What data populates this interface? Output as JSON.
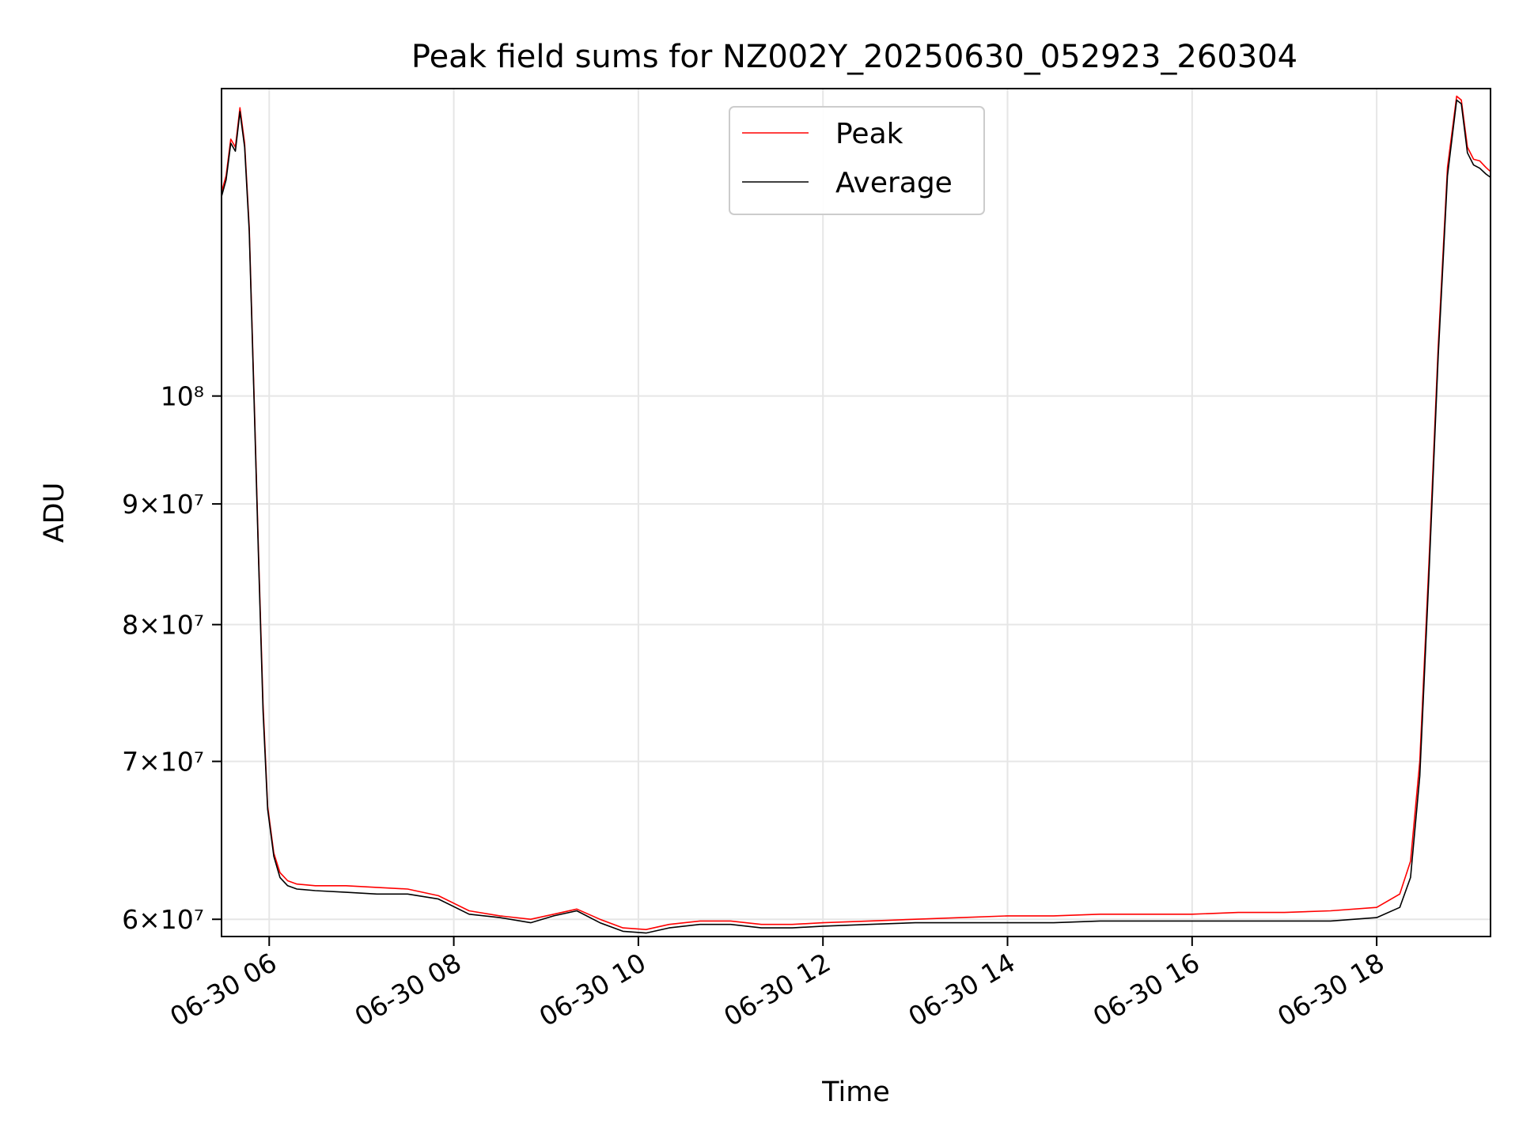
{
  "chart_data": {
    "type": "line",
    "title": "Peak field sums for NZ002Y_20250630_052923_260304",
    "xlabel": "Time",
    "ylabel": "ADU",
    "y_scale": "log",
    "grid": true,
    "legend_position": "top-center",
    "xlim": [
      "06-30 05:29",
      "06-30 19:14"
    ],
    "ylim": [
      59000000,
      135000000
    ],
    "x_ticks": [
      {
        "time": "06-30 06:00",
        "label": "06-30 06"
      },
      {
        "time": "06-30 08:00",
        "label": "06-30 08"
      },
      {
        "time": "06-30 10:00",
        "label": "06-30 10"
      },
      {
        "time": "06-30 12:00",
        "label": "06-30 12"
      },
      {
        "time": "06-30 14:00",
        "label": "06-30 14"
      },
      {
        "time": "06-30 16:00",
        "label": "06-30 16"
      },
      {
        "time": "06-30 18:00",
        "label": "06-30 18"
      }
    ],
    "y_ticks": [
      {
        "value": 60000000,
        "label": "6×10⁷"
      },
      {
        "value": 70000000,
        "label": "7×10⁷"
      },
      {
        "value": 80000000,
        "label": "8×10⁷"
      },
      {
        "value": 90000000,
        "label": "9×10⁷"
      },
      {
        "value": 100000000,
        "label": "10⁸"
      }
    ],
    "series": [
      {
        "name": "Peak",
        "color": "#ff0000",
        "x": [
          "06-30 05:29",
          "06-30 05:32",
          "06-30 05:35",
          "06-30 05:38",
          "06-30 05:41",
          "06-30 05:44",
          "06-30 05:47",
          "06-30 05:50",
          "06-30 05:53",
          "06-30 05:56",
          "06-30 05:59",
          "06-30 06:03",
          "06-30 06:07",
          "06-30 06:12",
          "06-30 06:18",
          "06-30 06:30",
          "06-30 06:50",
          "06-30 07:10",
          "06-30 07:30",
          "06-30 07:50",
          "06-30 08:10",
          "06-30 08:30",
          "06-30 08:50",
          "06-30 09:05",
          "06-30 09:20",
          "06-30 09:35",
          "06-30 09:50",
          "06-30 10:05",
          "06-30 10:20",
          "06-30 10:40",
          "06-30 11:00",
          "06-30 11:20",
          "06-30 11:40",
          "06-30 12:00",
          "06-30 12:30",
          "06-30 13:00",
          "06-30 13:30",
          "06-30 14:00",
          "06-30 14:30",
          "06-30 15:00",
          "06-30 15:30",
          "06-30 16:00",
          "06-30 16:30",
          "06-30 17:00",
          "06-30 17:30",
          "06-30 18:00",
          "06-30 18:15",
          "06-30 18:22",
          "06-30 18:28",
          "06-30 18:34",
          "06-30 18:40",
          "06-30 18:46",
          "06-30 18:52",
          "06-30 18:55",
          "06-30 18:59",
          "06-30 19:03",
          "06-30 19:07",
          "06-30 19:11",
          "06-30 19:14"
        ],
        "values": [
          122000000,
          124000000,
          128500000,
          127500000,
          132500000,
          128000000,
          118000000,
          101000000,
          86000000,
          74000000,
          67000000,
          64000000,
          62800000,
          62300000,
          62100000,
          62000000,
          62000000,
          61900000,
          61800000,
          61400000,
          60500000,
          60200000,
          60000000,
          60300000,
          60600000,
          60000000,
          59500000,
          59400000,
          59700000,
          59900000,
          59900000,
          59700000,
          59700000,
          59800000,
          59900000,
          60000000,
          60100000,
          60200000,
          60200000,
          60300000,
          60300000,
          60300000,
          60400000,
          60400000,
          60500000,
          60700000,
          61500000,
          63500000,
          70000000,
          85000000,
          105000000,
          125000000,
          134000000,
          133500000,
          127500000,
          126000000,
          125800000,
          125000000,
          124500000
        ]
      },
      {
        "name": "Average",
        "color": "#000000",
        "x": [
          "06-30 05:29",
          "06-30 05:32",
          "06-30 05:35",
          "06-30 05:38",
          "06-30 05:41",
          "06-30 05:44",
          "06-30 05:47",
          "06-30 05:50",
          "06-30 05:53",
          "06-30 05:56",
          "06-30 05:59",
          "06-30 06:03",
          "06-30 06:07",
          "06-30 06:12",
          "06-30 06:18",
          "06-30 06:30",
          "06-30 06:50",
          "06-30 07:10",
          "06-30 07:30",
          "06-30 07:50",
          "06-30 08:10",
          "06-30 08:30",
          "06-30 08:50",
          "06-30 09:05",
          "06-30 09:20",
          "06-30 09:35",
          "06-30 09:50",
          "06-30 10:05",
          "06-30 10:20",
          "06-30 10:40",
          "06-30 11:00",
          "06-30 11:20",
          "06-30 11:40",
          "06-30 12:00",
          "06-30 12:30",
          "06-30 13:00",
          "06-30 13:30",
          "06-30 14:00",
          "06-30 14:30",
          "06-30 15:00",
          "06-30 15:30",
          "06-30 16:00",
          "06-30 16:30",
          "06-30 17:00",
          "06-30 17:30",
          "06-30 18:00",
          "06-30 18:15",
          "06-30 18:22",
          "06-30 18:28",
          "06-30 18:34",
          "06-30 18:40",
          "06-30 18:46",
          "06-30 18:52",
          "06-30 18:55",
          "06-30 18:59",
          "06-30 19:03",
          "06-30 19:07",
          "06-30 19:11",
          "06-30 19:14"
        ],
        "values": [
          121500000,
          123500000,
          128000000,
          127000000,
          132000000,
          127500000,
          117500000,
          100500000,
          85500000,
          73500000,
          66800000,
          63800000,
          62500000,
          62000000,
          61800000,
          61700000,
          61600000,
          61500000,
          61500000,
          61200000,
          60300000,
          60100000,
          59800000,
          60200000,
          60500000,
          59800000,
          59300000,
          59200000,
          59500000,
          59700000,
          59700000,
          59500000,
          59500000,
          59600000,
          59700000,
          59800000,
          59800000,
          59800000,
          59800000,
          59900000,
          59900000,
          59900000,
          59900000,
          59900000,
          59900000,
          60100000,
          60700000,
          62500000,
          69000000,
          84000000,
          104000000,
          124000000,
          133500000,
          133000000,
          126800000,
          125300000,
          124900000,
          124200000,
          123800000
        ]
      }
    ]
  }
}
